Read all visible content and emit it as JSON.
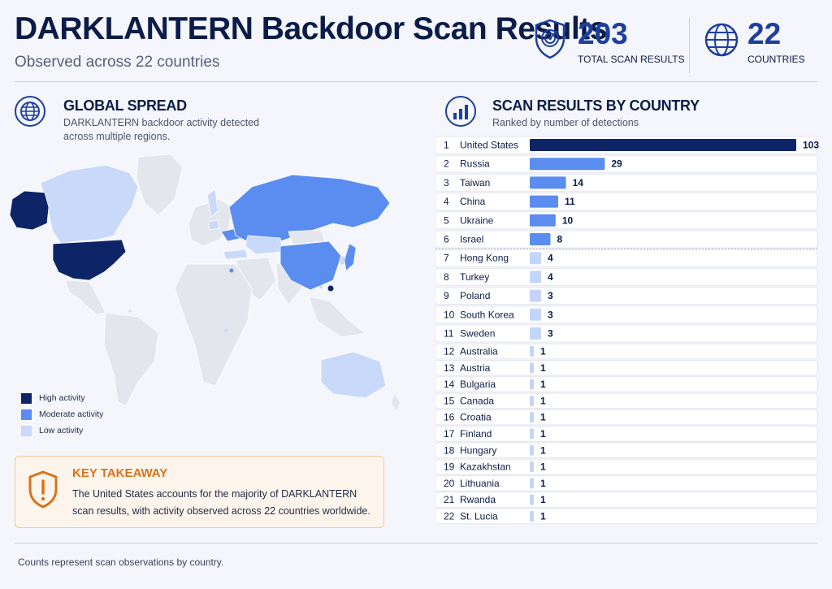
{
  "header": {
    "title": "DARKLANTERN Backdoor Scan Results",
    "subtitle": "Observed across 22 countries"
  },
  "stats": [
    {
      "value": "203",
      "label": "TOTAL SCAN RESULTS",
      "icon": "shield-target-icon"
    },
    {
      "value": "22",
      "label": "COUNTRIES",
      "icon": "globe-icon"
    }
  ],
  "map_section": {
    "title": "GLOBAL SPREAD",
    "subtitle_line1": "DARKLANTERN backdoor activity detected",
    "subtitle_line2": "across multiple regions.",
    "icon": "globe-icon",
    "legend": [
      {
        "label": "High activity",
        "color": "#0d2466"
      },
      {
        "label": "Moderate activity",
        "color": "#5b8df0"
      },
      {
        "label": "Low activity",
        "color": "#c9d9fa"
      }
    ]
  },
  "takeaway": {
    "title": "KEY TAKEAWAY",
    "text": "The United States accounts for the majority of DARKLANTERN scan results, with activity observed across 22 countries worldwide.",
    "icon": "warning-shield-icon"
  },
  "chart_section": {
    "title": "SCAN RESULTS BY COUNTRY",
    "subtitle": "Ranked by number of detections",
    "icon": "bar-chart-icon"
  },
  "chart_data": {
    "type": "bar",
    "orientation": "horizontal",
    "title": "SCAN RESULTS BY COUNTRY",
    "subtitle": "Ranked by number of detections",
    "ranks": [
      "1",
      "2",
      "3",
      "4",
      "5",
      "6",
      "7",
      "8",
      "9",
      "10",
      "11",
      "12",
      "13",
      "14",
      "15",
      "16",
      "17",
      "18",
      "19",
      "20",
      "21",
      "22"
    ],
    "categories": [
      "United States",
      "Russia",
      "Taiwan",
      "China",
      "Ukraine",
      "Israel",
      "Hong Kong",
      "Turkey",
      "Poland",
      "South Korea",
      "Sweden",
      "Australia",
      "Austria",
      "Bulgaria",
      "Canada",
      "Croatia",
      "Finland",
      "Hungary",
      "Kazakhstan",
      "Lithuania",
      "Rwanda",
      "St. Lucia"
    ],
    "values": [
      103,
      29,
      14,
      11,
      10,
      8,
      4,
      4,
      3,
      3,
      3,
      1,
      1,
      1,
      1,
      1,
      1,
      1,
      1,
      1,
      1,
      1
    ],
    "xlim": [
      0,
      103
    ],
    "colors": {
      "high": "#0d2466",
      "moderate": "#5b8df0",
      "low": "#c3d5f8"
    }
  },
  "footer": {
    "note": "Counts represent scan observations by country."
  }
}
